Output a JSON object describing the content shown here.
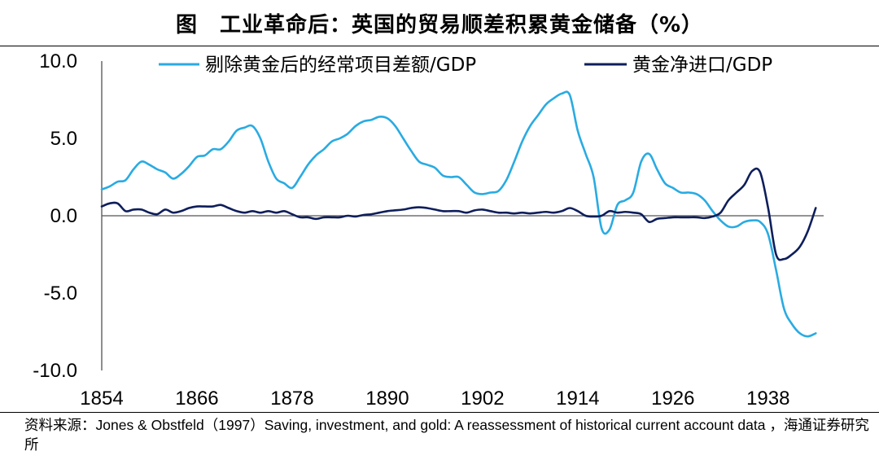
{
  "chart_data": {
    "type": "line",
    "title": "图　工业革命后：英国的贸易顺差积累黄金储备（%）",
    "xlabel": "",
    "ylabel": "",
    "xlim": [
      1854,
      1945
    ],
    "ylim": [
      -10,
      10
    ],
    "x_ticks": [
      "1854",
      "1866",
      "1878",
      "1890",
      "1902",
      "1914",
      "1926",
      "1938"
    ],
    "x_tick_values": [
      1854,
      1866,
      1878,
      1890,
      1902,
      1914,
      1926,
      1938
    ],
    "y_ticks": [
      "10.0",
      "5.0",
      "0.0",
      "-5.0",
      "-10.0"
    ],
    "y_tick_values": [
      10,
      5,
      0,
      -5,
      -10
    ],
    "legend_position": "top",
    "series": [
      {
        "name": "剔除黄金后的经常项目差额/GDP",
        "color": "#29ABE2",
        "points": [
          [
            1854,
            1.7
          ],
          [
            1855,
            1.9
          ],
          [
            1856,
            2.2
          ],
          [
            1857,
            2.3
          ],
          [
            1858,
            3.0
          ],
          [
            1859,
            3.5
          ],
          [
            1860,
            3.3
          ],
          [
            1861,
            3.0
          ],
          [
            1862,
            2.8
          ],
          [
            1863,
            2.4
          ],
          [
            1864,
            2.7
          ],
          [
            1865,
            3.2
          ],
          [
            1866,
            3.8
          ],
          [
            1867,
            3.9
          ],
          [
            1868,
            4.3
          ],
          [
            1869,
            4.3
          ],
          [
            1870,
            4.8
          ],
          [
            1871,
            5.5
          ],
          [
            1872,
            5.7
          ],
          [
            1873,
            5.8
          ],
          [
            1874,
            5.0
          ],
          [
            1875,
            3.5
          ],
          [
            1876,
            2.4
          ],
          [
            1877,
            2.1
          ],
          [
            1878,
            1.8
          ],
          [
            1879,
            2.5
          ],
          [
            1880,
            3.3
          ],
          [
            1881,
            3.9
          ],
          [
            1882,
            4.3
          ],
          [
            1883,
            4.8
          ],
          [
            1884,
            5.0
          ],
          [
            1885,
            5.3
          ],
          [
            1886,
            5.8
          ],
          [
            1887,
            6.1
          ],
          [
            1888,
            6.2
          ],
          [
            1889,
            6.4
          ],
          [
            1890,
            6.3
          ],
          [
            1891,
            5.8
          ],
          [
            1892,
            5.0
          ],
          [
            1893,
            4.2
          ],
          [
            1894,
            3.5
          ],
          [
            1895,
            3.3
          ],
          [
            1896,
            3.1
          ],
          [
            1897,
            2.6
          ],
          [
            1898,
            2.5
          ],
          [
            1899,
            2.5
          ],
          [
            1900,
            2.0
          ],
          [
            1901,
            1.5
          ],
          [
            1902,
            1.4
          ],
          [
            1903,
            1.5
          ],
          [
            1904,
            1.6
          ],
          [
            1905,
            2.3
          ],
          [
            1906,
            3.5
          ],
          [
            1907,
            4.8
          ],
          [
            1908,
            5.8
          ],
          [
            1909,
            6.5
          ],
          [
            1910,
            7.2
          ],
          [
            1911,
            7.6
          ],
          [
            1912,
            7.9
          ],
          [
            1913,
            7.8
          ],
          [
            1914,
            5.5
          ],
          [
            1915,
            4.0
          ],
          [
            1916,
            2.5
          ],
          [
            1917,
            -0.8
          ],
          [
            1918,
            -0.9
          ],
          [
            1919,
            0.7
          ],
          [
            1920,
            1.0
          ],
          [
            1921,
            1.5
          ],
          [
            1922,
            3.5
          ],
          [
            1923,
            4.0
          ],
          [
            1924,
            3.0
          ],
          [
            1925,
            2.1
          ],
          [
            1926,
            1.8
          ],
          [
            1927,
            1.5
          ],
          [
            1928,
            1.5
          ],
          [
            1929,
            1.4
          ],
          [
            1930,
            1.0
          ],
          [
            1931,
            0.3
          ],
          [
            1932,
            -0.3
          ],
          [
            1933,
            -0.7
          ],
          [
            1934,
            -0.7
          ],
          [
            1935,
            -0.4
          ],
          [
            1936,
            -0.3
          ],
          [
            1937,
            -0.4
          ],
          [
            1938,
            -1.2
          ],
          [
            1939,
            -3.5
          ],
          [
            1940,
            -6.0
          ],
          [
            1941,
            -7.0
          ],
          [
            1942,
            -7.6
          ],
          [
            1943,
            -7.8
          ],
          [
            1944,
            -7.6
          ]
        ]
      },
      {
        "name": "黄金净进口/GDP",
        "color": "#0E1E5B",
        "points": [
          [
            1854,
            0.6
          ],
          [
            1855,
            0.8
          ],
          [
            1856,
            0.8
          ],
          [
            1857,
            0.3
          ],
          [
            1858,
            0.4
          ],
          [
            1859,
            0.4
          ],
          [
            1860,
            0.2
          ],
          [
            1861,
            0.1
          ],
          [
            1862,
            0.4
          ],
          [
            1863,
            0.2
          ],
          [
            1864,
            0.3
          ],
          [
            1865,
            0.5
          ],
          [
            1866,
            0.6
          ],
          [
            1867,
            0.6
          ],
          [
            1868,
            0.6
          ],
          [
            1869,
            0.7
          ],
          [
            1870,
            0.5
          ],
          [
            1871,
            0.3
          ],
          [
            1872,
            0.2
          ],
          [
            1873,
            0.3
          ],
          [
            1874,
            0.2
          ],
          [
            1875,
            0.3
          ],
          [
            1876,
            0.2
          ],
          [
            1877,
            0.3
          ],
          [
            1878,
            0.1
          ],
          [
            1879,
            -0.1
          ],
          [
            1880,
            -0.1
          ],
          [
            1881,
            -0.2
          ],
          [
            1882,
            -0.1
          ],
          [
            1883,
            -0.1
          ],
          [
            1884,
            -0.1
          ],
          [
            1885,
            0.0
          ],
          [
            1886,
            -0.05
          ],
          [
            1887,
            0.05
          ],
          [
            1888,
            0.1
          ],
          [
            1889,
            0.2
          ],
          [
            1890,
            0.3
          ],
          [
            1891,
            0.35
          ],
          [
            1892,
            0.4
          ],
          [
            1893,
            0.5
          ],
          [
            1894,
            0.55
          ],
          [
            1895,
            0.5
          ],
          [
            1896,
            0.4
          ],
          [
            1897,
            0.3
          ],
          [
            1898,
            0.3
          ],
          [
            1899,
            0.3
          ],
          [
            1900,
            0.2
          ],
          [
            1901,
            0.35
          ],
          [
            1902,
            0.4
          ],
          [
            1903,
            0.3
          ],
          [
            1904,
            0.2
          ],
          [
            1905,
            0.2
          ],
          [
            1906,
            0.15
          ],
          [
            1907,
            0.2
          ],
          [
            1908,
            0.15
          ],
          [
            1909,
            0.2
          ],
          [
            1910,
            0.25
          ],
          [
            1911,
            0.2
          ],
          [
            1912,
            0.3
          ],
          [
            1913,
            0.5
          ],
          [
            1914,
            0.3
          ],
          [
            1915,
            0.0
          ],
          [
            1916,
            -0.05
          ],
          [
            1917,
            0.0
          ],
          [
            1918,
            0.3
          ],
          [
            1919,
            0.2
          ],
          [
            1920,
            0.25
          ],
          [
            1921,
            0.2
          ],
          [
            1922,
            0.1
          ],
          [
            1923,
            -0.4
          ],
          [
            1924,
            -0.2
          ],
          [
            1925,
            -0.15
          ],
          [
            1926,
            -0.1
          ],
          [
            1927,
            -0.1
          ],
          [
            1928,
            -0.1
          ],
          [
            1929,
            -0.1
          ],
          [
            1930,
            -0.15
          ],
          [
            1931,
            -0.05
          ],
          [
            1932,
            0.2
          ],
          [
            1933,
            1.0
          ],
          [
            1934,
            1.5
          ],
          [
            1935,
            2.0
          ],
          [
            1936,
            2.9
          ],
          [
            1937,
            2.8
          ],
          [
            1938,
            0.5
          ],
          [
            1939,
            -2.5
          ],
          [
            1940,
            -2.8
          ],
          [
            1941,
            -2.5
          ],
          [
            1942,
            -2.0
          ],
          [
            1943,
            -1.0
          ],
          [
            1944,
            0.5
          ]
        ]
      }
    ],
    "source_note": "资料来源：Jones & Obstfeld（1997）Saving, investment, and gold: A reassessment of historical current account data ，海通证券研究所"
  }
}
